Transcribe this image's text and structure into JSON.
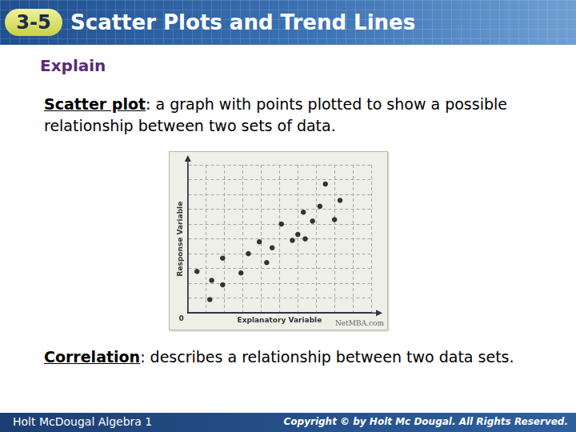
{
  "header": {
    "badge": "3-5",
    "title": "Scatter Plots and Trend Lines"
  },
  "section": "Explain",
  "definitions": [
    {
      "term": "Scatter plot",
      "text": ": a graph with points plotted to show a possible relationship between two sets of data."
    },
    {
      "term": "Correlation",
      "text": ": describes a relationship between two data sets."
    }
  ],
  "chart_data": {
    "type": "scatter",
    "x_label": "Explanatory Variable",
    "y_label": "Response Variable",
    "origin_label": "0",
    "source": "NetMBA.com",
    "x": [
      0.5,
      1.3,
      1.9,
      1.2,
      1.9,
      2.9,
      3.3,
      3.9,
      4.3,
      4.6,
      5.1,
      5.7,
      6.0,
      6.4,
      6.3,
      6.8,
      7.2,
      7.5,
      8.0,
      8.3
    ],
    "values": [
      2.8,
      2.2,
      1.9,
      0.9,
      3.7,
      2.7,
      4.0,
      4.8,
      3.4,
      4.4,
      6.0,
      4.9,
      5.3,
      5.0,
      6.8,
      6.2,
      7.2,
      8.7,
      6.3,
      7.6
    ],
    "color": "#333333",
    "marker": "circle",
    "xlim": [
      0,
      10
    ],
    "ylim": [
      0,
      10
    ],
    "xticks": [
      0,
      1,
      2,
      3,
      4,
      5,
      6,
      7,
      8,
      9,
      10
    ],
    "yticks": [
      0,
      1,
      2,
      3,
      4,
      5,
      6,
      7,
      8,
      9,
      10
    ],
    "grid": true,
    "tick_labels": false
  },
  "footer": {
    "left": "Holt McDougal Algebra 1",
    "right": "Copyright © by Holt Mc Dougal. All Rights Reserved."
  }
}
